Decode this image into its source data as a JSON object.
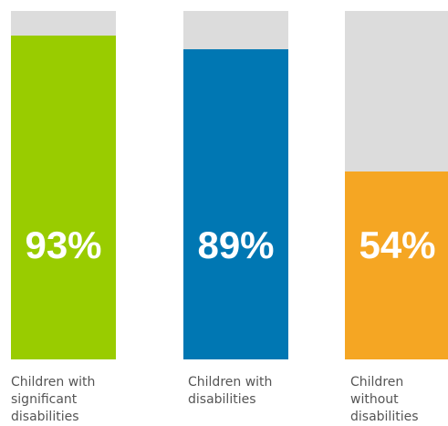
{
  "chart_data": {
    "type": "bar",
    "categories": [
      [
        "Children with",
        "significant",
        "disabilities"
      ],
      [
        "Children with",
        "disabilities"
      ],
      [
        "Children",
        "without",
        "disabilities"
      ]
    ],
    "values": [
      93,
      89,
      54
    ],
    "value_labels": [
      "93%",
      "89%",
      "54%"
    ],
    "ylim": [
      0,
      100
    ],
    "colors": [
      "#99cc00",
      "#0077b3",
      "#f5a623"
    ],
    "track_color": "#dcdcdc",
    "label_color": "#555555",
    "title": "",
    "xlabel": "",
    "ylabel": "",
    "grid": false,
    "legend": "none"
  }
}
